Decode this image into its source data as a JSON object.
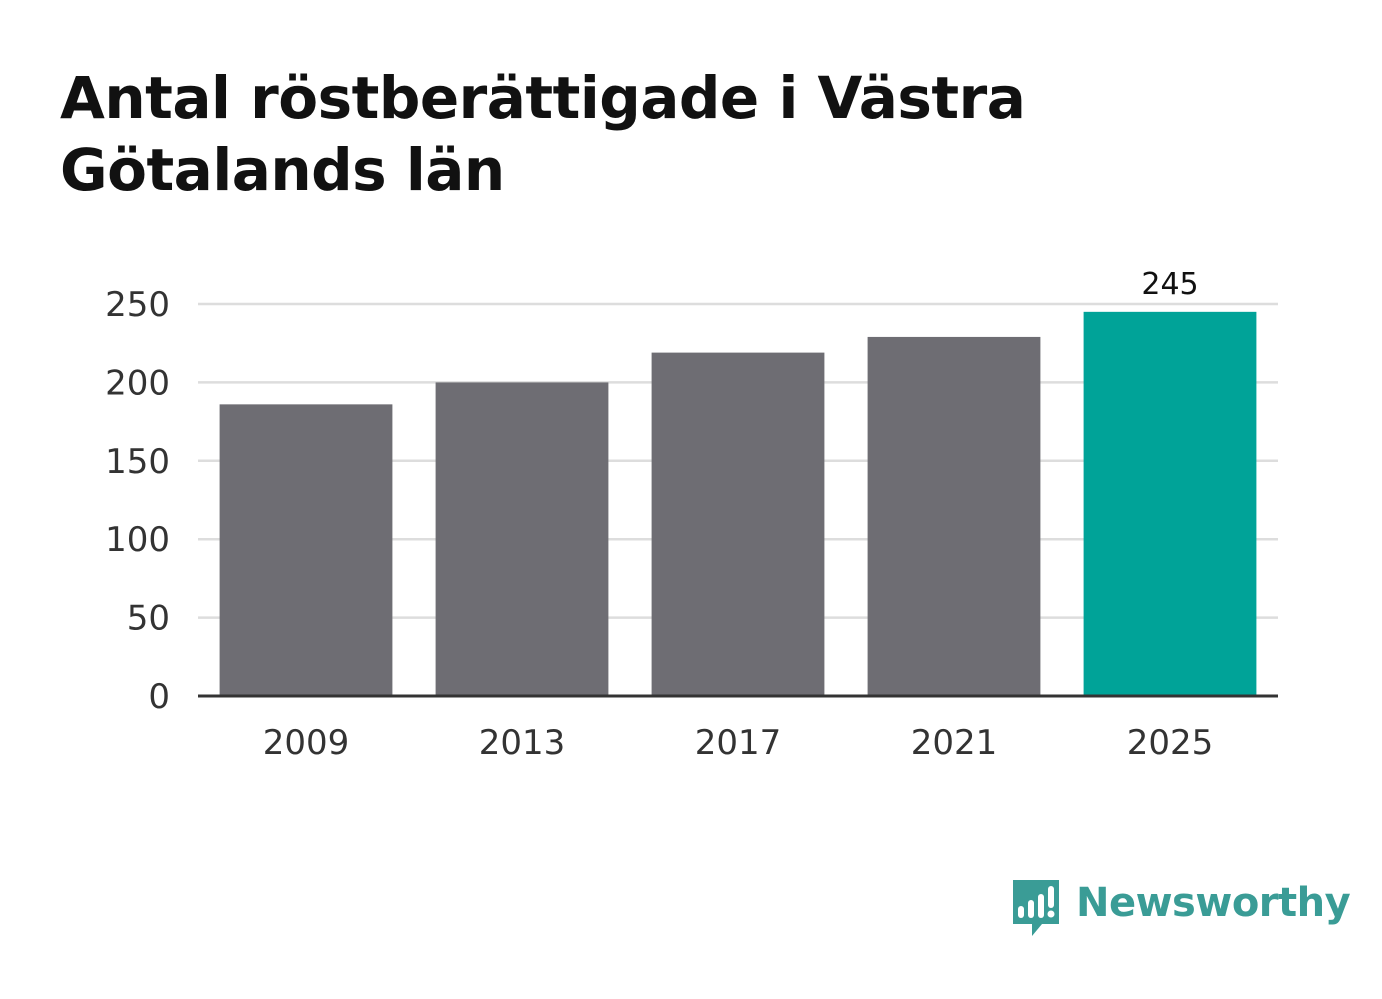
{
  "title": "Antal röstberättigade i Västra Götalands län",
  "brand": {
    "name": "Newsworthy",
    "color": "#3a9c96",
    "icon": "newsworthy-chart-bubble-icon"
  },
  "colors": {
    "bar_default": "#6e6d73",
    "bar_highlight": "#00a398",
    "grid": "#dddddd",
    "axis": "#333333"
  },
  "chart_data": {
    "type": "bar",
    "title": "Antal röstberättigade i Västra Götalands län",
    "categories": [
      "2009",
      "2013",
      "2017",
      "2021",
      "2025"
    ],
    "values": [
      186,
      200,
      219,
      229,
      245
    ],
    "highlight_index": 4,
    "value_labels": [
      null,
      null,
      null,
      null,
      "245"
    ],
    "xlabel": "",
    "ylabel": "",
    "ylim": [
      0,
      250
    ],
    "yticks": [
      0,
      50,
      100,
      150,
      200,
      250
    ],
    "grid": true,
    "legend": "none"
  }
}
